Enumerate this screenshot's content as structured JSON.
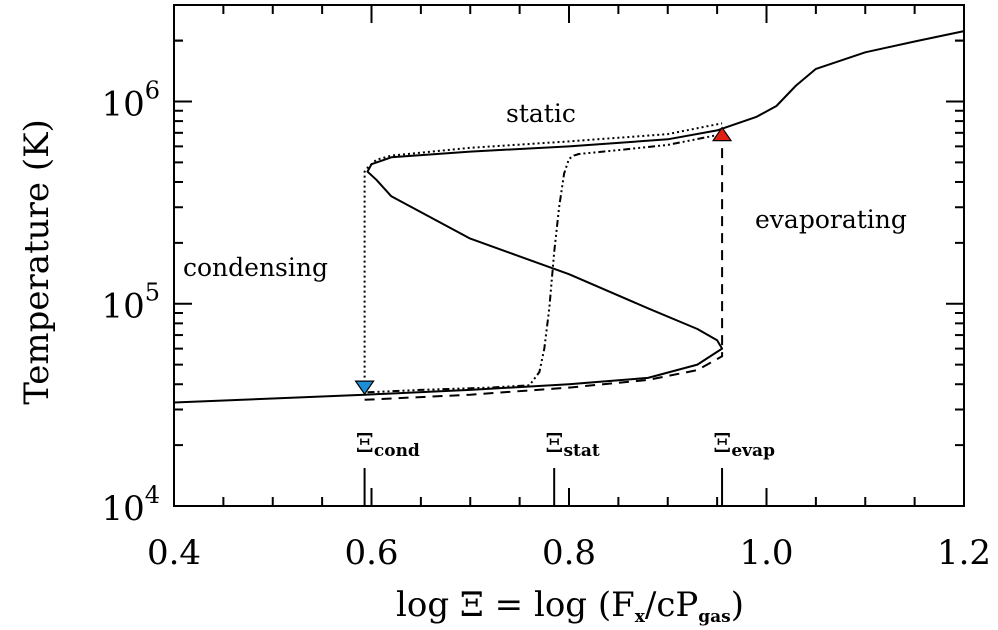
{
  "chart_data": {
    "type": "line",
    "xlabel": {
      "pre": "log Ξ = log (F",
      "sub1": "x",
      "mid": "/cP",
      "sub2": "gas",
      "post": ")"
    },
    "ylabel": "Temperature (K)",
    "xlim": [
      0.4,
      1.2
    ],
    "ylim": [
      10000,
      3000000
    ],
    "yscale": "log",
    "grid": false,
    "x_ticks": [
      "0.4",
      "0.6",
      "0.8",
      "1.0",
      "1.2"
    ],
    "y_ticks": [
      {
        "base": "10",
        "exp": "4"
      },
      {
        "base": "10",
        "exp": "5"
      },
      {
        "base": "10",
        "exp": "6"
      }
    ],
    "annotations": {
      "static": "static",
      "condensing": "condensing",
      "evaporating": "evaporating"
    },
    "markers": [
      {
        "sym": "Ξ",
        "sub": "cond",
        "x": 0.593
      },
      {
        "sym": "Ξ",
        "sub": "stat",
        "x": 0.785
      },
      {
        "sym": "Ξ",
        "sub": "evap",
        "x": 0.955
      }
    ],
    "series": [
      {
        "style": "solid",
        "x": [
          0.4,
          0.5,
          0.593,
          0.7,
          0.8,
          0.88,
          0.93,
          0.955,
          0.95,
          0.93,
          0.88,
          0.8,
          0.7,
          0.62,
          0.605,
          0.596,
          0.6,
          0.62,
          0.7,
          0.8,
          0.9,
          0.95,
          0.99,
          1.01,
          1.03,
          1.05,
          1.1,
          1.15,
          1.2
        ],
        "y": [
          32500,
          34000,
          35500,
          37500,
          40000,
          43000,
          50000,
          60000,
          66000,
          75000,
          95000,
          140000,
          210000,
          340000,
          410000,
          450000,
          490000,
          530000,
          565000,
          600000,
          650000,
          720000,
          840000,
          950000,
          1200000,
          1450000,
          1750000,
          1980000,
          2230000
        ]
      },
      {
        "style": "dotted",
        "x": [
          0.593,
          0.593,
          0.596,
          0.605,
          0.62,
          0.7,
          0.8,
          0.9,
          0.955
        ],
        "y": [
          38500,
          450000,
          470000,
          515000,
          540000,
          590000,
          635000,
          690000,
          780000
        ]
      },
      {
        "style": "dashdot",
        "x": [
          0.596,
          0.65,
          0.72,
          0.76,
          0.77,
          0.775,
          0.78,
          0.785,
          0.79,
          0.795,
          0.8,
          0.805,
          0.81,
          0.85,
          0.9,
          0.955
        ],
        "y": [
          36500,
          37500,
          38500,
          39500,
          46000,
          60000,
          95000,
          180000,
          300000,
          440000,
          520000,
          540000,
          550000,
          575000,
          610000,
          690000
        ]
      },
      {
        "style": "dashed",
        "x": [
          0.593,
          0.7,
          0.8,
          0.88,
          0.93,
          0.955,
          0.955,
          0.955
        ],
        "y": [
          33500,
          35500,
          38500,
          42000,
          47000,
          55000,
          200000,
          680000
        ]
      }
    ],
    "triangles": [
      {
        "x": 0.593,
        "y": 38500,
        "color": "#1e8fd6",
        "dir": "down"
      },
      {
        "x": 0.955,
        "y": 690000,
        "color": "#e02010",
        "dir": "up"
      }
    ]
  }
}
